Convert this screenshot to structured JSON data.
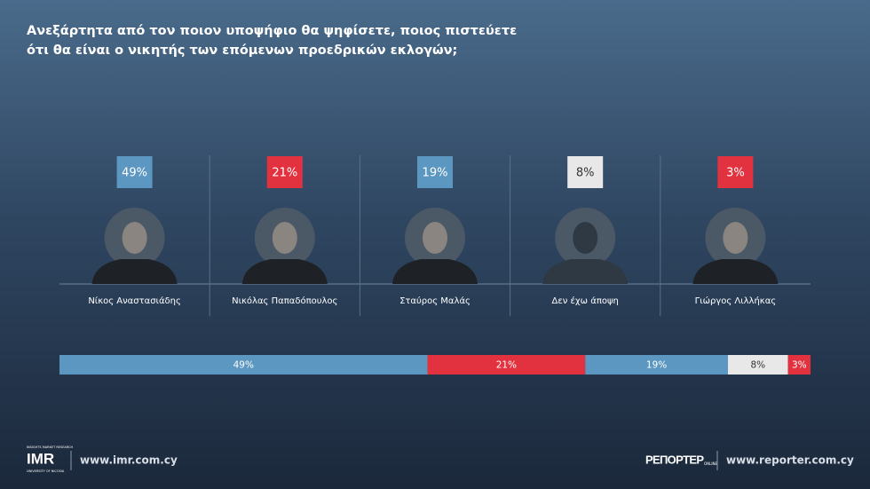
{
  "chart_data": {
    "type": "stacked_bar",
    "title": "Ανεξάρτητα από τον ποιον υποψήφιο θα ψηφίσετε, ποιος πιστεύετε ότι θα είναι ο νικητής των επόμενων προεδρικών εκλογών;",
    "categories": [
      "Νίκος Αναστασιάδης",
      "Νικόλας Παπαδόπουλος",
      "Σταύρος Μαλάς",
      "Δεν έχω άποψη",
      "Γιώργος Λιλλήκας"
    ],
    "values": [
      49,
      21,
      19,
      8,
      3
    ],
    "value_labels": [
      "49%",
      "21%",
      "19%",
      "8%",
      "3%"
    ],
    "colors": [
      "#5b97c0",
      "#e3323f",
      "#5b97c0",
      "#e8e8e8",
      "#e3323f"
    ],
    "xlim": [
      0,
      100
    ]
  },
  "footer": {
    "imr_logo": "IMR",
    "imr_tagline": "INSIGHTS MARKET RESEARCH",
    "imr_university": "UNIVERSITY OF NICOSIA",
    "imr_url": "www.imr.com.cy",
    "reporter_logo": "ΡΕΠΟΡΤΕΡ",
    "reporter_logo_suffix": "ONLINE",
    "reporter_url": "www.reporter.com.cy"
  }
}
